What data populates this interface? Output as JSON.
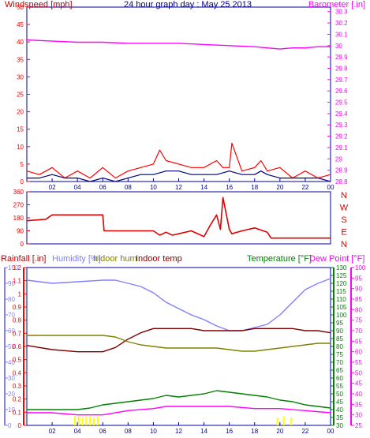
{
  "title": "24 hour graph day : May 25 2013",
  "colors": {
    "background": "#ffffff",
    "frame": "#0000a0",
    "wind": "#ff0000",
    "wind_avg": "#000080",
    "barometer": "#ff00ff",
    "direction": "#e00000",
    "rain": "#ff0000",
    "humidity": "#8080ff",
    "indoor_hum": "#808000",
    "indoor_temp": "#800000",
    "temperature": "#008000",
    "dew_point": "#ff00ff",
    "rain_bar": "#ffff00"
  },
  "chart_data": [
    {
      "type": "line",
      "name": "wind-barometer",
      "xlabels": [
        "02",
        "04",
        "06",
        "08",
        "10",
        "12",
        "14",
        "16",
        "18",
        "20",
        "22",
        "00"
      ],
      "left_axis": {
        "label": "Windspeed [mph]",
        "ticks": [
          0,
          5,
          10,
          15,
          20,
          25,
          30,
          35,
          40,
          45,
          50
        ],
        "ylim": [
          0,
          50
        ]
      },
      "right_axis": {
        "label": "Barometer [.in]",
        "ticks": [
          28.8,
          28.9,
          29.0,
          29.1,
          29.2,
          29.3,
          29.4,
          29.5,
          29.6,
          29.7,
          29.8,
          29.9,
          30.0,
          30.1,
          30.2,
          30.3
        ],
        "tick_labels": [
          "28.8",
          "28.9",
          "29",
          "29.1",
          "29.2",
          "29.3",
          "29.4",
          "29.5",
          "29.6",
          "29.7",
          "29.8",
          "29.9",
          "30",
          "30.1",
          "30.2",
          "30.3"
        ],
        "ylim": [
          28.8,
          30.34
        ]
      },
      "series": [
        {
          "key": "barometer",
          "axis": "right",
          "x": [
            0,
            2,
            4,
            6,
            8,
            10,
            12,
            14,
            16,
            18,
            19,
            20,
            21,
            22,
            23,
            24
          ],
          "values": [
            30.05,
            30.04,
            30.03,
            30.03,
            30.02,
            30.02,
            30.02,
            30.01,
            30.0,
            29.99,
            29.98,
            29.97,
            29.98,
            29.98,
            29.99,
            29.99
          ]
        },
        {
          "key": "wind_gust",
          "axis": "left",
          "x": [
            0,
            1,
            2,
            3,
            4,
            5,
            6,
            7,
            8,
            9,
            10,
            10.5,
            11,
            12,
            13,
            14,
            15,
            15.5,
            16,
            16.2,
            17,
            18,
            18.5,
            19,
            20,
            21,
            22,
            23,
            24
          ],
          "values": [
            3,
            2,
            4,
            1,
            3,
            1,
            4,
            1,
            3,
            4,
            5,
            9,
            6,
            5,
            4,
            4,
            6,
            4,
            4,
            11,
            3,
            4,
            6,
            3,
            4,
            1,
            3,
            1,
            2
          ]
        },
        {
          "key": "wind_avg",
          "axis": "left",
          "x": [
            0,
            1,
            2,
            3,
            4,
            5,
            6,
            7,
            8,
            9,
            10,
            11,
            12,
            13,
            14,
            15,
            16,
            17,
            18,
            18.5,
            19,
            20,
            21,
            22,
            23,
            24
          ],
          "values": [
            1,
            1,
            2,
            1,
            1,
            0,
            1,
            0,
            1,
            2,
            2,
            3,
            3,
            2,
            2,
            2,
            3,
            2,
            2,
            3,
            2,
            1,
            1,
            1,
            1,
            0
          ]
        }
      ]
    },
    {
      "type": "line",
      "name": "wind-direction",
      "xlabels": [
        "02",
        "04",
        "06",
        "08",
        "10",
        "12",
        "14",
        "16",
        "18",
        "20",
        "22",
        "00"
      ],
      "left_axis": {
        "ticks": [
          0,
          90,
          180,
          270,
          360
        ],
        "ylim": [
          0,
          360
        ]
      },
      "right_axis": {
        "tick_labels": [
          "N",
          "W",
          "S",
          "E",
          "N"
        ]
      },
      "series": [
        {
          "key": "direction",
          "x": [
            0,
            1.5,
            2,
            6,
            6.1,
            10,
            10.5,
            11,
            11.5,
            12,
            13,
            14,
            14.5,
            15,
            15.3,
            15.5,
            16,
            16.2,
            17,
            18,
            19,
            19.3,
            20,
            24
          ],
          "values": [
            160,
            170,
            200,
            200,
            90,
            90,
            60,
            80,
            60,
            70,
            90,
            50,
            130,
            200,
            100,
            320,
            100,
            70,
            90,
            110,
            80,
            40,
            40,
            40
          ]
        }
      ]
    },
    {
      "type": "line",
      "name": "temperature-humidity-rain",
      "legend": [
        "Rainfall [.in]",
        "Humidity [%]",
        "Indoor hum",
        "Indoor temp",
        "Temperature [°F]",
        "Dew Point [°F]"
      ],
      "xlabels": [
        "02",
        "04",
        "06",
        "08",
        "10",
        "12",
        "14",
        "16",
        "18",
        "20",
        "22",
        "00"
      ],
      "humidity_axis": {
        "ticks": [
          0,
          10,
          20,
          30,
          40,
          50,
          60,
          70,
          80,
          90,
          100
        ],
        "ylim": [
          0,
          100
        ]
      },
      "rain_axis": {
        "ticks": [
          0,
          0.1,
          0.2,
          0.3,
          0.4,
          0.5,
          0.6,
          0.7,
          0.8,
          0.9,
          1,
          1.1,
          1.2
        ],
        "tick_labels": [
          "0",
          "0.1",
          "0.2",
          "0.3",
          "0.4",
          "0.5",
          "0.6",
          "0.7",
          "0.8",
          "0.9",
          "1",
          "1.1",
          "1.2"
        ],
        "ylim": [
          0,
          1.2
        ]
      },
      "temp_axis_green": {
        "ticks": [
          30,
          35,
          40,
          45,
          50,
          55,
          60,
          65,
          70,
          75,
          80,
          85,
          90,
          95,
          100,
          105,
          110,
          115,
          120,
          125,
          130
        ],
        "ylim": [
          30,
          130
        ]
      },
      "temp_axis_magenta": {
        "ticks": [
          25,
          30,
          35,
          40,
          45,
          50,
          55,
          60,
          65,
          70,
          75,
          80,
          85,
          90,
          95,
          100
        ],
        "ylim": [
          25,
          100
        ]
      },
      "series": [
        {
          "key": "humidity",
          "axis": "humidity",
          "x": [
            0,
            2,
            4,
            6,
            7,
            8,
            9,
            10,
            11,
            12,
            13,
            14,
            15,
            16,
            17,
            18,
            19,
            20,
            21,
            22,
            23,
            24
          ],
          "values": [
            92,
            90,
            91,
            92,
            92,
            90,
            88,
            84,
            78,
            74,
            70,
            67,
            63,
            60,
            60,
            62,
            64,
            70,
            78,
            86,
            90,
            93
          ]
        },
        {
          "key": "indoor_temp",
          "axis": "temp_magenta",
          "x": [
            0,
            2,
            4,
            6,
            7,
            8,
            9,
            10,
            11,
            12,
            13,
            14,
            15,
            16,
            17,
            18,
            19,
            20,
            21,
            22,
            23,
            24
          ],
          "values": [
            63,
            61,
            60,
            60,
            62,
            66,
            69,
            71,
            71,
            71,
            71,
            70,
            70,
            70,
            70,
            71,
            71,
            71,
            71,
            70,
            70,
            69
          ]
        },
        {
          "key": "indoor_hum",
          "axis": "humidity",
          "x": [
            0,
            2,
            4,
            6,
            7,
            8,
            9,
            10,
            11,
            12,
            13,
            14,
            15,
            16,
            17,
            18,
            19,
            20,
            21,
            22,
            23,
            24
          ],
          "values": [
            57,
            57,
            57,
            57,
            56,
            53,
            51,
            50,
            49,
            49,
            49,
            49,
            49,
            48,
            47,
            47,
            48,
            49,
            50,
            51,
            52,
            52
          ]
        },
        {
          "key": "temperature",
          "axis": "temp_green",
          "x": [
            0,
            1,
            2,
            3,
            4,
            5,
            6,
            7,
            8,
            9,
            10,
            11,
            12,
            13,
            14,
            15,
            16,
            17,
            18,
            19,
            20,
            21,
            22,
            23,
            24
          ],
          "values": [
            40,
            40,
            40,
            40,
            40,
            41,
            43,
            44,
            45,
            46,
            47,
            49,
            48,
            49,
            50,
            52,
            51,
            50,
            49,
            48,
            46,
            45,
            43,
            42,
            41
          ]
        },
        {
          "key": "dew_point",
          "axis": "temp_magenta",
          "x": [
            0,
            2,
            4,
            6,
            8,
            10,
            11,
            12,
            14,
            16,
            18,
            20,
            22,
            24
          ],
          "values": [
            31,
            31,
            30,
            30,
            32,
            33,
            34,
            34,
            34,
            34,
            33,
            33,
            32,
            31
          ]
        }
      ],
      "rain_bars": {
        "x": [
          3.8,
          4.1,
          4.4,
          4.7,
          5.0,
          5.3,
          5.6,
          19.8,
          20.3,
          20.9
        ],
        "values": [
          0.07,
          0.07,
          0.06,
          0.07,
          0.07,
          0.06,
          0.07,
          0.06,
          0.07,
          0.06
        ]
      }
    }
  ]
}
